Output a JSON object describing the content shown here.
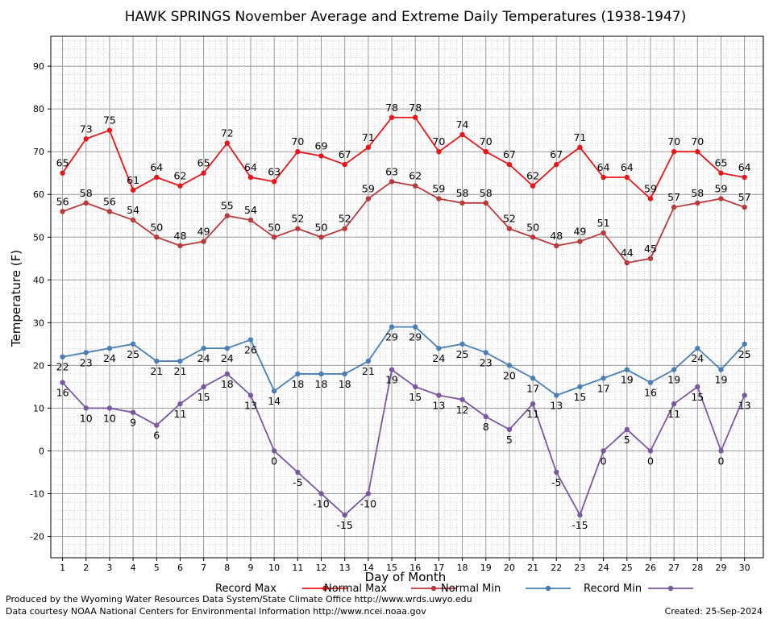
{
  "chart_data": {
    "type": "line",
    "title": "HAWK SPRINGS November Average and Extreme Daily Temperatures (1938-1947)",
    "xlabel": "Day of Month",
    "ylabel": "Temperature (F)",
    "x": [
      1,
      2,
      3,
      4,
      5,
      6,
      7,
      8,
      9,
      10,
      11,
      12,
      13,
      14,
      15,
      16,
      17,
      18,
      19,
      20,
      21,
      22,
      23,
      24,
      25,
      26,
      27,
      28,
      29,
      30
    ],
    "xlim": [
      0.5,
      30.8
    ],
    "ylim": [
      -25,
      97
    ],
    "yticks": [
      -20,
      -10,
      0,
      10,
      20,
      30,
      40,
      50,
      60,
      70,
      80,
      90
    ],
    "grid": true,
    "legend_position": "bottom",
    "series": [
      {
        "name": "Record Max",
        "color": "#e8161b",
        "label_pos": "above",
        "values": [
          65,
          73,
          75,
          61,
          64,
          62,
          65,
          72,
          64,
          63,
          70,
          69,
          67,
          71,
          78,
          78,
          70,
          74,
          70,
          67,
          62,
          67,
          71,
          64,
          64,
          59,
          70,
          70,
          65,
          64
        ]
      },
      {
        "name": "Normal Max",
        "color": "#b9393b",
        "label_pos": "above",
        "values": [
          56,
          58,
          56,
          54,
          50,
          48,
          49,
          55,
          54,
          50,
          52,
          50,
          52,
          59,
          63,
          62,
          59,
          58,
          58,
          52,
          50,
          48,
          49,
          51,
          44,
          45,
          57,
          58,
          59,
          57
        ]
      },
      {
        "name": "Normal Min",
        "color": "#4a7fb5",
        "label_pos": "below",
        "values": [
          22,
          23,
          24,
          25,
          21,
          21,
          24,
          24,
          26,
          14,
          18,
          18,
          18,
          21,
          29,
          29,
          24,
          25,
          23,
          20,
          17,
          13,
          15,
          17,
          19,
          16,
          19,
          24,
          19,
          25
        ]
      },
      {
        "name": "Record Min",
        "color": "#7b57a0",
        "label_pos": "below",
        "values": [
          16,
          10,
          10,
          9,
          6,
          11,
          15,
          18,
          13,
          0,
          -5,
          -10,
          -15,
          -10,
          19,
          15,
          13,
          12,
          8,
          5,
          11,
          -5,
          -15,
          0,
          5,
          0,
          11,
          15,
          0,
          13
        ]
      }
    ]
  },
  "footer": {
    "produced_by": "Produced by the Wyoming Water Resources Data System/State Climate Office http://www.wrds.uwyo.edu",
    "courtesy": "Data courtesy NOAA National Centers for Environmental Information http://www.ncei.noaa.gov",
    "created": "Created:  25-Sep-2024"
  }
}
